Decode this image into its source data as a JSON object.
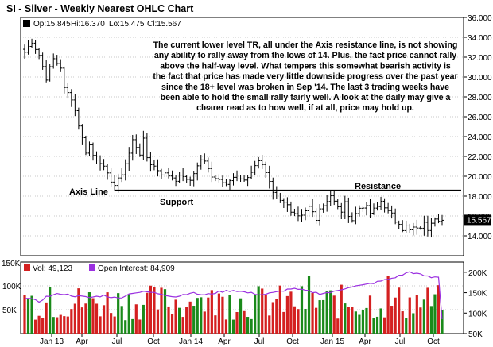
{
  "header": {
    "title": "SI - Silver - Weekly Nearest OHLC Chart"
  },
  "ohlc_panel": {
    "legend": {
      "op": "Op:15.845",
      "hi": "Hi:16.370",
      "lo": "Lo:15.475",
      "cl": "Cl:15.567"
    },
    "last_price_tag": "15.567",
    "annotation": "The current lower level TR, all under the Axis resistance line, is not showing any ability to rally away from the lows of 14.  Plus, the fact price cannot rally above the half-way level.  What tempers this somewhat bearish activity is the fact that price has made very little downside progress over the past year since the 18+ level was broken in Sep '14.  The last 3 trading weeks have been able to hold the small rally fairly well.  A look at the daily may give a clearer read as to how well, if at all, price may hold up.",
    "labels": {
      "axis_line": "Axis Line",
      "support": "Support",
      "resistance": "Resistance"
    },
    "colors": {
      "frame": "#000000",
      "bars": "#000000",
      "tag_bg": "#000000",
      "tag_fg": "#ffffff"
    }
  },
  "volume_panel": {
    "top_tick": "150K",
    "legend": {
      "vol": "Vol: 49,123",
      "oi": "Open Interest: 84,909"
    },
    "colors": {
      "up": "#1a8a1a",
      "down": "#d42020",
      "open_interest": "#9b30e0"
    }
  },
  "chart_data": [
    {
      "type": "ohlc",
      "title": "SI - Silver - Weekly Nearest OHLC Chart",
      "x_unit": "week",
      "ylim": [
        12,
        36
      ],
      "y_ticks": [
        14,
        16,
        18,
        20,
        22,
        24,
        26,
        28,
        30,
        32,
        34,
        36
      ],
      "y_tick_labels": [
        "14.000",
        "16.000",
        "18.000",
        "20.000",
        "22.000",
        "24.000",
        "26.000",
        "28.000",
        "30.000",
        "32.000",
        "34.000",
        "36.000"
      ],
      "x_tick_labels": [
        "Jan 13",
        "Apr",
        "Jul",
        "Oct",
        "Jan 14",
        "Apr",
        "Jul",
        "Oct",
        "Jan 15",
        "Apr",
        "Jul",
        "Oct"
      ],
      "axis_line_level": 18.6,
      "close_anchors": [
        [
          0,
          32.5
        ],
        [
          2,
          33.6
        ],
        [
          4,
          32.2
        ],
        [
          6,
          29.9
        ],
        [
          8,
          31.8
        ],
        [
          10,
          31.0
        ],
        [
          11,
          28.8
        ],
        [
          13,
          27.9
        ],
        [
          14,
          26.6
        ],
        [
          16,
          23.8
        ],
        [
          17,
          22.5
        ],
        [
          18,
          23.2
        ],
        [
          19,
          22.1
        ],
        [
          21,
          21.5
        ],
        [
          23,
          20.1
        ],
        [
          24,
          19.6
        ],
        [
          25,
          19.1
        ],
        [
          26,
          19.6
        ],
        [
          27,
          20.3
        ],
        [
          28,
          21.3
        ],
        [
          29,
          22.3
        ],
        [
          30,
          23.6
        ],
        [
          31,
          23.0
        ],
        [
          32,
          22.3
        ],
        [
          33,
          23.6
        ],
        [
          34,
          21.9
        ],
        [
          35,
          21.3
        ],
        [
          36,
          21.0
        ],
        [
          38,
          20.3
        ],
        [
          40,
          20.1
        ],
        [
          42,
          19.7
        ],
        [
          44,
          20.1
        ],
        [
          45,
          19.5
        ],
        [
          46,
          19.6
        ],
        [
          47,
          20.4
        ],
        [
          48,
          21.0
        ],
        [
          49,
          21.7
        ],
        [
          50,
          21.4
        ],
        [
          51,
          20.7
        ],
        [
          52,
          20.1
        ],
        [
          54,
          19.7
        ],
        [
          56,
          19.4
        ],
        [
          58,
          19.8
        ],
        [
          60,
          19.5
        ],
        [
          62,
          19.9
        ],
        [
          63,
          20.4
        ],
        [
          64,
          21.1
        ],
        [
          65,
          21.4
        ],
        [
          66,
          21.2
        ],
        [
          67,
          20.4
        ],
        [
          68,
          19.6
        ],
        [
          69,
          18.5
        ],
        [
          70,
          18.0
        ],
        [
          72,
          17.5
        ],
        [
          73,
          17.0
        ],
        [
          74,
          16.2
        ],
        [
          76,
          15.8
        ],
        [
          77,
          15.9
        ],
        [
          78,
          16.4
        ],
        [
          79,
          16.9
        ],
        [
          80,
          16.4
        ],
        [
          81,
          15.8
        ],
        [
          82,
          16.8
        ],
        [
          83,
          17.1
        ],
        [
          84,
          17.6
        ],
        [
          85,
          18.1
        ],
        [
          86,
          17.4
        ],
        [
          87,
          16.8
        ],
        [
          88,
          16.5
        ],
        [
          89,
          17.2
        ],
        [
          90,
          16.2
        ],
        [
          91,
          15.6
        ],
        [
          92,
          16.2
        ],
        [
          93,
          16.8
        ],
        [
          94,
          17.0
        ],
        [
          95,
          16.8
        ],
        [
          96,
          16.3
        ],
        [
          97,
          16.6
        ],
        [
          98,
          16.9
        ],
        [
          99,
          17.5
        ],
        [
          100,
          17.0
        ],
        [
          101,
          16.4
        ],
        [
          102,
          16.1
        ],
        [
          103,
          15.5
        ],
        [
          104,
          15.4
        ],
        [
          105,
          14.7
        ],
        [
          106,
          14.9
        ],
        [
          107,
          14.5
        ],
        [
          108,
          14.8
        ],
        [
          109,
          14.6
        ],
        [
          110,
          14.9
        ],
        [
          111,
          15.2
        ],
        [
          112,
          14.7
        ],
        [
          113,
          15.5
        ],
        [
          114,
          15.9
        ],
        [
          115,
          15.7
        ],
        [
          116,
          15.567
        ]
      ]
    },
    {
      "type": "bar",
      "title": "Volume / Open Interest",
      "ylim": [
        0,
        150000
      ],
      "y_ticks": [
        50000,
        100000,
        150000
      ],
      "y_tick_labels": [
        "50K",
        "100K",
        "150K"
      ],
      "y2lim": [
        50000,
        225000
      ],
      "y2_ticks": [
        50000,
        100000,
        150000,
        200000
      ],
      "y2_tick_labels": [
        "50K",
        "100K",
        "150K",
        "200K"
      ],
      "series": [
        {
          "name": "Vol",
          "last_value": 49123
        },
        {
          "name": "Open Interest",
          "last_value": 84909,
          "anchors": [
            [
              0,
              138000
            ],
            [
              4,
              128000
            ],
            [
              6,
              140000
            ],
            [
              10,
              148000
            ],
            [
              14,
              142000
            ],
            [
              18,
              138000
            ],
            [
              22,
              143000
            ],
            [
              26,
              136000
            ],
            [
              30,
              150000
            ],
            [
              34,
              152000
            ],
            [
              38,
              147000
            ],
            [
              42,
              140000
            ],
            [
              46,
              150000
            ],
            [
              50,
              144000
            ],
            [
              54,
              152000
            ],
            [
              58,
              156000
            ],
            [
              62,
              150000
            ],
            [
              66,
              145000
            ],
            [
              70,
              151000
            ],
            [
              74,
              160000
            ],
            [
              78,
              155000
            ],
            [
              82,
              148000
            ],
            [
              86,
              152000
            ],
            [
              90,
              164000
            ],
            [
              94,
              168000
            ],
            [
              98,
              176000
            ],
            [
              102,
              185000
            ],
            [
              105,
              194000
            ],
            [
              107,
              201000
            ],
            [
              110,
              194000
            ],
            [
              113,
              187000
            ],
            [
              115,
              189000
            ],
            [
              116,
              84909
            ]
          ]
        }
      ]
    }
  ]
}
